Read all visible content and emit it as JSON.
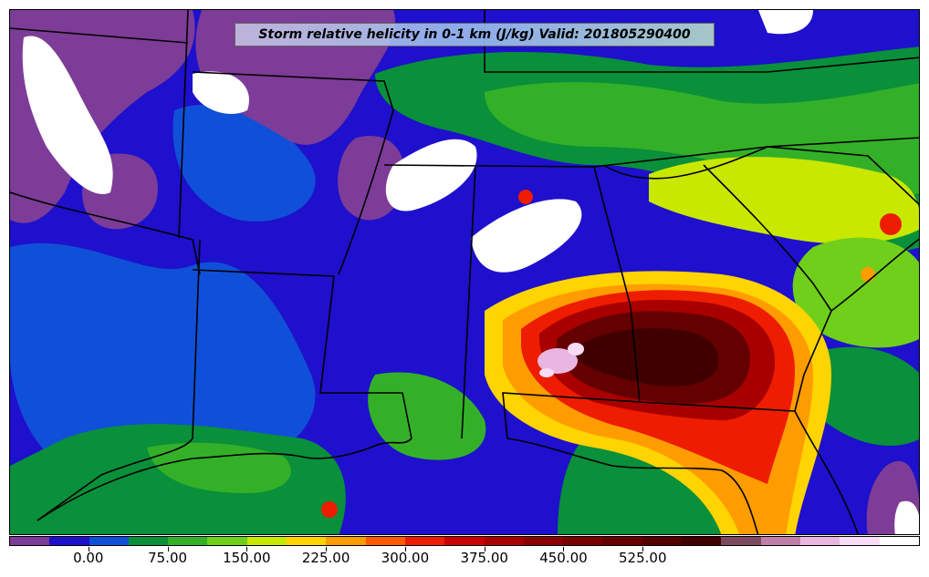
{
  "title": "Storm relative helicity in 0-1 km (J/kg) Valid: 201805290400",
  "colorbar": {
    "colors": [
      "#7d3c98",
      "#1e10cc",
      "#1050d8",
      "#0a8f3a",
      "#34b028",
      "#6fcf1a",
      "#c8e800",
      "#ffd400",
      "#ff9c00",
      "#ff5a00",
      "#ee1c00",
      "#cc0000",
      "#a80000",
      "#8c0000",
      "#780000",
      "#640000",
      "#520000",
      "#400000",
      "#7d4a5e",
      "#c07fa8",
      "#e8b6e0",
      "#f6dcf4",
      "#ffffff"
    ],
    "tick_labels": [
      "0.00",
      "75.00",
      "150.00",
      "225.00",
      "300.00",
      "375.00",
      "450.00",
      "525.00"
    ]
  },
  "legend_colors": {
    "background_purple": "#7d3c98",
    "low_blue": "#1e10cc",
    "green": "#0a8f3a",
    "yellow": "#ffd400",
    "red": "#ee1c00",
    "dark_red": "#640000",
    "pink": "#e8b6e0",
    "border": "#000000"
  }
}
